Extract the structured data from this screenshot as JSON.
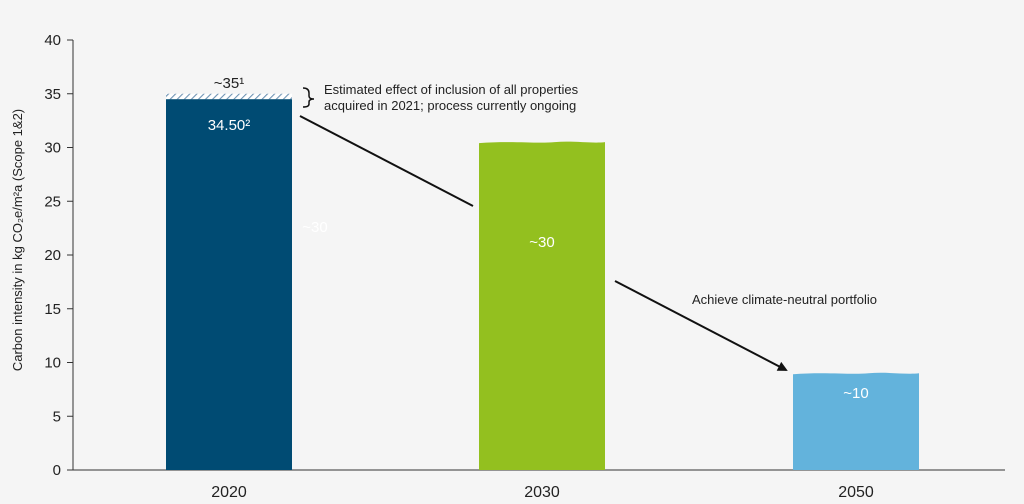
{
  "chart_data": {
    "type": "bar",
    "categories": [
      "2020",
      "2030",
      "2050"
    ],
    "values": [
      34.5,
      30.5,
      9.0
    ],
    "hatched_extension": {
      "category": "2020",
      "from": 34.5,
      "to": 35
    },
    "ylabel": "Carbon intensity in kg CO₂e/m²a (Scope 1&2)",
    "ylim": [
      0,
      40
    ],
    "yticks": [
      0,
      5,
      10,
      15,
      20,
      25,
      30,
      35,
      40
    ],
    "bar_labels": [
      "34.50²",
      "~30",
      "~10"
    ],
    "top_label": "~35¹",
    "ghost_label": "~30",
    "annotations": [
      "Estimated effect of inclusion of all properties",
      "acquired in 2021; process currently ongoing",
      "Achieve climate-neutral portfolio"
    ],
    "colors": [
      "#004b73",
      "#93c01f",
      "#63b3dc"
    ],
    "hatch_color": "#7a9fbd"
  }
}
